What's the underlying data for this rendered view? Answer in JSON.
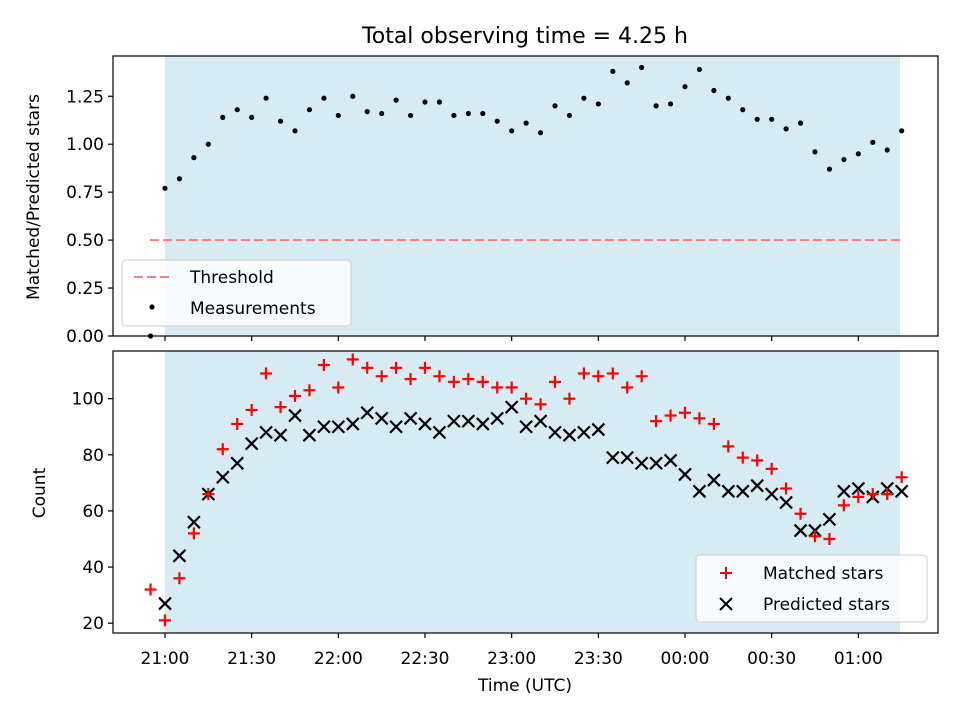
{
  "title": "Total observing time = 4.25 h",
  "colors": {
    "background_band": "#add8e6",
    "threshold": "#ff7f7f",
    "measurements": "#000000",
    "matched": "#ff0000",
    "predicted": "#000000"
  },
  "chart_data": [
    {
      "type": "scatter",
      "ylabel": "Matched/Predicted stars",
      "ylim": [
        0,
        1.46
      ],
      "yticks": [
        0,
        0.25,
        0.5,
        0.75,
        1.0,
        1.25
      ],
      "ytick_labels": [
        "0.00",
        "0.25",
        "0.50",
        "0.75",
        "1.00",
        "1.25"
      ],
      "threshold": 0.5,
      "legend": {
        "placement": "lower-left",
        "entries": [
          "Threshold",
          "Measurements"
        ]
      },
      "series": [
        {
          "name": "Measurements",
          "x": [
            -5,
            0,
            5,
            10,
            15,
            20,
            25,
            30,
            35,
            40,
            45,
            50,
            55,
            60,
            65,
            70,
            75,
            80,
            85,
            90,
            95,
            100,
            105,
            110,
            115,
            120,
            125,
            130,
            135,
            140,
            145,
            150,
            155,
            160,
            165,
            170,
            175,
            180,
            185,
            190,
            195,
            200,
            205,
            210,
            215,
            220,
            225,
            230,
            235,
            240,
            245,
            250,
            255
          ],
          "y": [
            0.0,
            0.77,
            0.82,
            0.93,
            1.0,
            1.14,
            1.18,
            1.14,
            1.24,
            1.12,
            1.07,
            1.18,
            1.24,
            1.15,
            1.25,
            1.17,
            1.16,
            1.23,
            1.15,
            1.22,
            1.22,
            1.15,
            1.16,
            1.16,
            1.12,
            1.07,
            1.11,
            1.06,
            1.2,
            1.15,
            1.24,
            1.21,
            1.38,
            1.32,
            1.4,
            1.2,
            1.21,
            1.3,
            1.39,
            1.28,
            1.24,
            1.18,
            1.13,
            1.13,
            1.08,
            1.11,
            0.96,
            0.87,
            0.92,
            0.95,
            1.01,
            0.97,
            1.07
          ]
        }
      ]
    },
    {
      "type": "scatter",
      "ylabel": "Count",
      "xlabel": "Time (UTC)",
      "ylim": [
        16.5,
        117
      ],
      "yticks": [
        20,
        40,
        60,
        80,
        100
      ],
      "ytick_labels": [
        "20",
        "40",
        "60",
        "80",
        "100"
      ],
      "xtick_labels": [
        "21:00",
        "21:30",
        "22:00",
        "22:30",
        "23:00",
        "23:30",
        "00:00",
        "00:30",
        "01:00"
      ],
      "x_units": "minutes after 21:00 UTC",
      "legend": {
        "placement": "lower-right",
        "entries": [
          "Matched stars",
          "Predicted stars"
        ]
      },
      "series": [
        {
          "name": "Matched stars",
          "x": [
            -5,
            0,
            5,
            10,
            15,
            20,
            25,
            30,
            35,
            40,
            45,
            50,
            55,
            60,
            65,
            70,
            75,
            80,
            85,
            90,
            95,
            100,
            105,
            110,
            115,
            120,
            125,
            130,
            135,
            140,
            145,
            150,
            155,
            160,
            165,
            170,
            175,
            180,
            185,
            190,
            195,
            200,
            205,
            210,
            215,
            220,
            225,
            230,
            235,
            240,
            245,
            250,
            255
          ],
          "y": [
            32,
            21,
            36,
            52,
            66,
            82,
            91,
            96,
            109,
            97,
            101,
            103,
            112,
            104,
            114,
            111,
            108,
            111,
            107,
            111,
            108,
            106,
            107,
            106,
            104,
            104,
            100,
            98,
            106,
            100,
            109,
            108,
            109,
            104,
            108,
            92,
            94,
            95,
            93,
            91,
            83,
            79,
            78,
            75,
            68,
            59,
            51,
            50,
            62,
            65,
            66,
            66,
            72
          ]
        },
        {
          "name": "Predicted stars",
          "x": [
            0,
            5,
            10,
            15,
            20,
            25,
            30,
            35,
            40,
            45,
            50,
            55,
            60,
            65,
            70,
            75,
            80,
            85,
            90,
            95,
            100,
            105,
            110,
            115,
            120,
            125,
            130,
            135,
            140,
            145,
            150,
            155,
            160,
            165,
            170,
            175,
            180,
            185,
            190,
            195,
            200,
            205,
            210,
            215,
            220,
            225,
            230,
            235,
            240,
            245,
            250,
            255
          ],
          "y": [
            27,
            44,
            56,
            66,
            72,
            77,
            84,
            88,
            87,
            94,
            87,
            90,
            90,
            91,
            95,
            93,
            90,
            93,
            91,
            88,
            92,
            92,
            91,
            93,
            97,
            90,
            92,
            88,
            87,
            88,
            89,
            79,
            79,
            77,
            77,
            78,
            73,
            67,
            71,
            67,
            67,
            69,
            66,
            63,
            53,
            53,
            57,
            67,
            68,
            65,
            68,
            67
          ]
        }
      ]
    }
  ]
}
